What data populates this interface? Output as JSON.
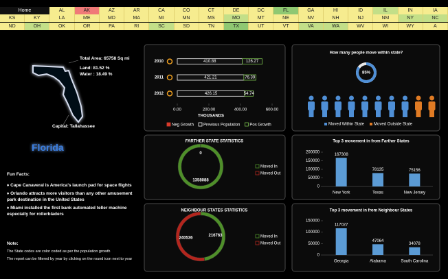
{
  "nav": {
    "home": "Home",
    "rows": [
      [
        {
          "label": "AL",
          "color": "#f6ec8f"
        },
        {
          "label": "AK",
          "color": "#f07a78"
        },
        {
          "label": "AZ",
          "color": "#f6ec8f"
        },
        {
          "label": "AR",
          "color": "#f6ec8f"
        },
        {
          "label": "CA",
          "color": "#f6ec8f"
        },
        {
          "label": "CO",
          "color": "#f6ec8f"
        },
        {
          "label": "CT",
          "color": "#f6ec8f"
        },
        {
          "label": "DE",
          "color": "#f6ec8f"
        },
        {
          "label": "DC",
          "color": "#f6ec8f"
        },
        {
          "label": "FL",
          "color": "#8fc872"
        },
        {
          "label": "GA",
          "color": "#f6ec8f"
        },
        {
          "label": "HI",
          "color": "#f6ec8f"
        },
        {
          "label": "ID",
          "color": "#f6ec8f"
        },
        {
          "label": "IL",
          "color": "#c3df88"
        },
        {
          "label": "IN",
          "color": "#f6ec8f"
        },
        {
          "label": "IA",
          "color": "#f6ec8f"
        }
      ],
      [
        {
          "label": "KS",
          "color": "#f6ec8f"
        },
        {
          "label": "KY",
          "color": "#f6ec8f"
        },
        {
          "label": "LA",
          "color": "#f6ec8f"
        },
        {
          "label": "ME",
          "color": "#f6ec8f"
        },
        {
          "label": "MD",
          "color": "#f6ec8f"
        },
        {
          "label": "MA",
          "color": "#f6ec8f"
        },
        {
          "label": "MI",
          "color": "#f6ec8f"
        },
        {
          "label": "MN",
          "color": "#f6ec8f"
        },
        {
          "label": "MS",
          "color": "#f6ec8f"
        },
        {
          "label": "MO",
          "color": "#c3df88"
        },
        {
          "label": "MT",
          "color": "#f6ec8f"
        },
        {
          "label": "NE",
          "color": "#f6ec8f"
        },
        {
          "label": "NV",
          "color": "#f6ec8f"
        },
        {
          "label": "NH",
          "color": "#f6ec8f"
        },
        {
          "label": "NJ",
          "color": "#f6ec8f"
        },
        {
          "label": "NM",
          "color": "#f6ec8f"
        },
        {
          "label": "NY",
          "color": "#c3df88"
        },
        {
          "label": "NC",
          "color": "#c3df88"
        }
      ],
      [
        {
          "label": "ND",
          "color": "#f6ec8f"
        },
        {
          "label": "OH",
          "color": "#c3df88"
        },
        {
          "label": "OK",
          "color": "#f6ec8f"
        },
        {
          "label": "OR",
          "color": "#f6ec8f"
        },
        {
          "label": "PA",
          "color": "#f6ec8f"
        },
        {
          "label": "RI",
          "color": "#f6ec8f"
        },
        {
          "label": "SC",
          "color": "#c3df88"
        },
        {
          "label": "SD",
          "color": "#f6ec8f"
        },
        {
          "label": "TN",
          "color": "#f6ec8f"
        },
        {
          "label": "TX",
          "color": "#8fc872"
        },
        {
          "label": "UT",
          "color": "#f6ec8f"
        },
        {
          "label": "VT",
          "color": "#f6ec8f"
        },
        {
          "label": "VA",
          "color": "#c3df88"
        },
        {
          "label": "WA",
          "color": "#c3df88"
        },
        {
          "label": "WV",
          "color": "#f6ec8f"
        },
        {
          "label": "WI",
          "color": "#f6ec8f"
        },
        {
          "label": "WY",
          "color": "#f6ec8f"
        },
        {
          "label": "A",
          "color": "#f6ec8f"
        }
      ]
    ]
  },
  "info": {
    "total_area": "Total Area: 65758 Sq mi",
    "land": "Land: 81.52 %",
    "water": "Water : 18.49 %",
    "capital": "Capital: Tallahassee",
    "state_name": "Florida"
  },
  "fun_facts": {
    "title": "Fun Facts:",
    "items": [
      "♦ Cape Canaveral is America's launch pad for space flights",
      "♦ Orlando attracts more visitors than any other amusement park destination in the United States",
      "♦ Miami installed the first bank automated teller machine especially for rollerbladers"
    ]
  },
  "note": {
    "title": "Note:",
    "lines": [
      "The State codes are color coded as per the population growth",
      "The report can be filtered by year by clicking on the round icon next to year"
    ]
  },
  "chart_data": [
    {
      "type": "hbar",
      "categories": [
        "2010",
        "2011",
        "2012"
      ],
      "series": [
        {
          "name": "Neg Growth",
          "color": "#d93a2b",
          "values": [
            0,
            0,
            0
          ]
        },
        {
          "name": "Previous Population",
          "color": "#ffffff",
          "values": [
            410.88,
            421.21,
            426.15
          ]
        },
        {
          "name": "Pos Growth",
          "color": "#7cc44e",
          "values": [
            126.27,
            76.39,
            54.74
          ]
        }
      ],
      "xlim": [
        0,
        600
      ],
      "xticks": [
        {
          "value": 0,
          "label": "0.00"
        },
        {
          "value": 200,
          "label": "200.00"
        },
        {
          "value": 400,
          "label": "400.00"
        },
        {
          "value": 600,
          "label": "600.00"
        }
      ],
      "xlabel": "THOUSANDS"
    },
    {
      "type": "gauge",
      "title": "How many people move within state?",
      "value": 85,
      "value_label": "85%",
      "series": [
        {
          "name": "Moved Within State",
          "color": "#4f8fd6"
        },
        {
          "name": "Moved Outside State",
          "color": "#e07b24"
        }
      ]
    },
    {
      "type": "ring",
      "title": "FARTHER STATE STATISTICS",
      "categories": [
        "Moved In",
        "Moved Out"
      ],
      "values": [
        1358088,
        0
      ],
      "colors": [
        "#4f8f2a",
        "#b3261e"
      ]
    },
    {
      "type": "ring",
      "title": "NEIGHBOUR STATES STATISTICS",
      "categories": [
        "Moved In",
        "Moved Out"
      ],
      "values": [
        216763,
        240536
      ],
      "colors": [
        "#4f8f2a",
        "#b3261e"
      ]
    },
    {
      "type": "bar",
      "title": "Top 3 movement in from Farther States",
      "categories": [
        "New York",
        "Texas",
        "New Jersey"
      ],
      "values": [
        167308,
        78135,
        75156
      ],
      "color": "#5b9bd5",
      "ylim": [
        0,
        200000
      ],
      "yticks": [
        0,
        50000,
        100000,
        150000,
        200000
      ]
    },
    {
      "type": "bar",
      "title": "Top 3 movement in from Neighbour States",
      "categories": [
        "Georgia",
        "Alabama",
        "South Carolina"
      ],
      "values": [
        117027,
        47064,
        34078
      ],
      "color": "#5b9bd5",
      "ylim": [
        0,
        150000
      ],
      "yticks": [
        0,
        50000,
        100000,
        150000
      ]
    }
  ]
}
